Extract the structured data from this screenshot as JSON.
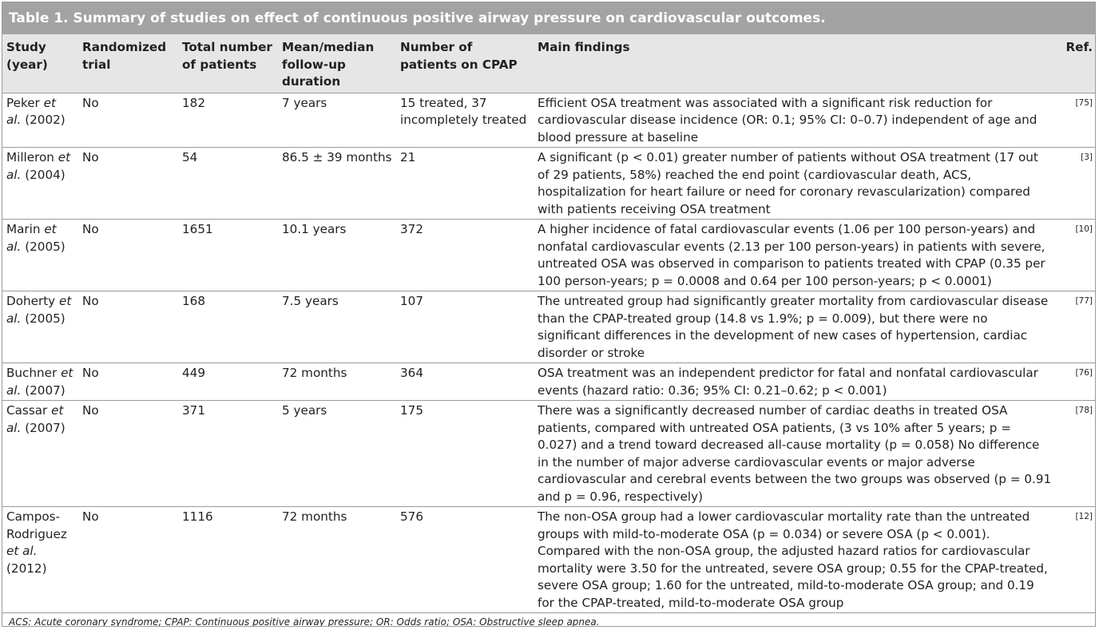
{
  "title": "Table 1. Summary of studies on effect of continuous positive airway pressure on cardiovascular outcomes.",
  "headers": {
    "study": "Study (year)",
    "randomized": "Randomized trial",
    "total": "Total number of patients",
    "followup": "Mean/median follow-up duration",
    "cpap": "Number of patients on CPAP",
    "findings": "Main findings",
    "ref": "Ref."
  },
  "rows": [
    {
      "author": "Peker",
      "year": "(2002)",
      "randomized": "No",
      "total": "182",
      "followup": "7 years",
      "cpap": "15 treated, 37 incompletely treated",
      "findings": "Efficient OSA treatment was associated with a significant risk reduction for cardiovascular disease incidence (OR: 0.1; 95% CI: 0–0.7) independent of age and blood pressure at baseline",
      "ref": "[75]"
    },
    {
      "author": "Milleron",
      "year": "(2004)",
      "randomized": "No",
      "total": "54",
      "followup": "86.5 ± 39 months",
      "cpap": "21",
      "findings": "A significant (p < 0.01) greater number of patients without OSA treatment (17 out of 29 patients, 58%) reached the end point (cardiovascular death, ACS, hospitalization for heart failure or need for coronary revascularization) compared with patients receiving OSA treatment",
      "ref": "[3]"
    },
    {
      "author": "Marin",
      "year": "(2005)",
      "randomized": "No",
      "total": "1651",
      "followup": "10.1 years",
      "cpap": "372",
      "findings": "A higher incidence of fatal cardiovascular events (1.06 per 100 person-years) and nonfatal cardiovascular events (2.13 per 100 person-years) in patients with severe, untreated OSA was observed in comparison to patients treated with CPAP (0.35 per 100 person-years; p = 0.0008 and 0.64 per 100 person-years; p < 0.0001)",
      "ref": "[10]"
    },
    {
      "author": "Doherty",
      "year": "(2005)",
      "randomized": "No",
      "total": "168",
      "followup": "7.5 years",
      "cpap": "107",
      "findings": "The untreated group had significantly greater mortality from cardiovascular disease than the CPAP-treated group (14.8 vs 1.9%; p = 0.009), but there were no significant differences in the development of new cases of hypertension, cardiac disorder or stroke",
      "ref": "[77]"
    },
    {
      "author": "Buchner",
      "year": "(2007)",
      "randomized": "No",
      "total": "449",
      "followup": "72 months",
      "cpap": "364",
      "findings": "OSA treatment was an independent predictor for fatal and nonfatal cardiovascular events (hazard ratio: 0.36; 95% CI: 0.21–0.62; p < 0.001)",
      "ref": "[76]"
    },
    {
      "author": "Cassar",
      "year": "(2007)",
      "randomized": "No",
      "total": "371",
      "followup": "5 years",
      "cpap": "175",
      "findings": "There was a significantly decreased number of cardiac deaths in treated OSA patients, compared with untreated OSA patients, (3 vs 10% after 5 years; p = 0.027) and a trend toward decreased all-cause mortality (p = 0.058) No difference in the number of major adverse cardiovascular events or major adverse cardiovascular and cerebral events between the two groups was observed (p = 0.91 and p = 0.96, respectively)",
      "ref": "[78]"
    },
    {
      "author": "Campos-Rodriguez",
      "year": "(2012)",
      "randomized": "No",
      "total": "1116",
      "followup": "72 months",
      "cpap": "576",
      "findings": "The non-OSA group had a lower cardiovascular mortality rate than the untreated groups with mild-to-moderate OSA (p = 0.034) or severe OSA (p < 0.001). Compared with the non-OSA group, the adjusted hazard ratios for cardiovascular mortality were 3.50 for the untreated, severe OSA group; 0.55 for the CPAP-treated, severe OSA group; 1.60 for the untreated, mild-to-moderate OSA group; and 0.19 for the CPAP-treated, mild-to-moderate OSA group",
      "ref": "[12]"
    }
  ],
  "etal": "et al.",
  "footnote": "ACS: Acute coronary syndrome; CPAP: Continuous positive airway pressure; OR: Odds ratio; OSA: Obstructive sleep apnea.",
  "colors": {
    "title_bg": "#a3a3a4",
    "header_bg": "#e6e6e7",
    "rule": "#9a9a9a",
    "text": "#231f20"
  }
}
